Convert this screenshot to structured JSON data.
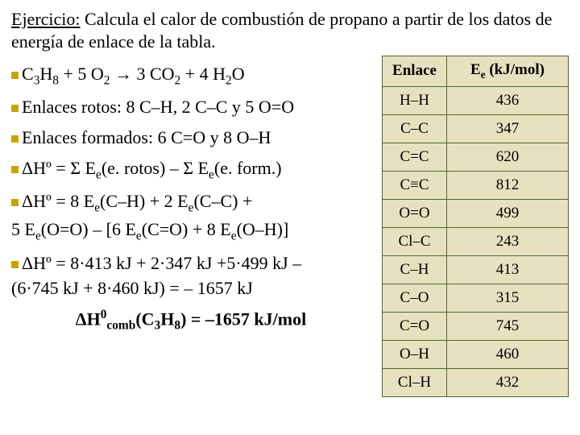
{
  "heading": {
    "label": "Ejercicio:",
    "text": " Calcula el calor de combustión de propano  a partir de los datos de energía de enlace de la tabla."
  },
  "lines": {
    "reaction_a": "C",
    "reaction_b": "H",
    "reaction_c": " + 5 O",
    "reaction_d": " → 3 CO",
    "reaction_e": " + 4 H",
    "reaction_f": "O",
    "rotos": "Enlaces rotos: 8 C–H,   2 C–C   y    5 O=O",
    "formados": "Enlaces formados: 6 C=O   y   8 O–H",
    "dh_sum_a": "ΔHº = Σ E",
    "dh_sum_b": "(e. rotos) – Σ E",
    "dh_sum_c": "(e. form.)",
    "dh_expand_1a": "ΔHº = 8 E",
    "dh_expand_1b": "(C–H) + 2 E",
    "dh_expand_1c": "(C–C) +",
    "dh_expand_2a": "5 E",
    "dh_expand_2b": "(O=O) – [6 E",
    "dh_expand_2c": "(C=O) + 8 E",
    "dh_expand_2d": "(O–H)]",
    "dh_calc_1": "ΔHº = 8·413 kJ + 2·347 kJ +5·499 kJ –",
    "dh_calc_2": "(6·745 kJ + 8·460 kJ) = – 1657 kJ",
    "result_a": "ΔH",
    "result_b": "(C",
    "result_c": "H",
    "result_d": ") = –1657 kJ/mol",
    "sub_3": "3",
    "sub_8": "8",
    "sub_2": "2",
    "sub_e": "e",
    "sup_0": "0",
    "sub_comb": "comb"
  },
  "table": {
    "header_bond": "Enlace",
    "header_energy_a": "E",
    "header_energy_b": " (kJ/mol)",
    "rows": [
      {
        "bond": "H–H",
        "val": "436"
      },
      {
        "bond": "C–C",
        "val": "347"
      },
      {
        "bond": "C=C",
        "val": "620"
      },
      {
        "bond": "C≡C",
        "val": "812"
      },
      {
        "bond": "O=O",
        "val": "499"
      },
      {
        "bond": "Cl–C",
        "val": "243"
      },
      {
        "bond": "C–H",
        "val": "413"
      },
      {
        "bond": "C–O",
        "val": "315"
      },
      {
        "bond": "C=O",
        "val": "745"
      },
      {
        "bond": "O–H",
        "val": "460"
      },
      {
        "bond": "Cl–H",
        "val": "432"
      }
    ]
  },
  "colors": {
    "bullet": "#c9a400",
    "table_bg": "#e8e1c0",
    "table_border": "#4a6b2a"
  }
}
